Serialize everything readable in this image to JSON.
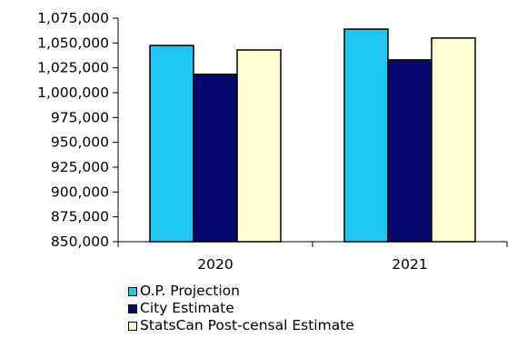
{
  "chart_data": {
    "type": "bar",
    "categories": [
      "2020",
      "2021"
    ],
    "series": [
      {
        "name": "O.P. Projection",
        "values": [
          1047500,
          1064000
        ],
        "color": "#1ec6f0"
      },
      {
        "name": "City Estimate",
        "values": [
          1018500,
          1033000
        ],
        "color": "#05056e"
      },
      {
        "name": "StatsCan Post-censal Estimate",
        "values": [
          1043000,
          1055000
        ],
        "color": "#fffdd2"
      }
    ],
    "yticks": [
      "850,000",
      "875,000",
      "900,000",
      "925,000",
      "950,000",
      "975,000",
      "1,000,000",
      "1,025,000",
      "1,050,000",
      "1,075,000"
    ],
    "ylim": [
      850000,
      1075000
    ],
    "ystep": 25000,
    "title": "",
    "xlabel": "",
    "ylabel": "",
    "grid": false,
    "legend_position": "bottom"
  }
}
